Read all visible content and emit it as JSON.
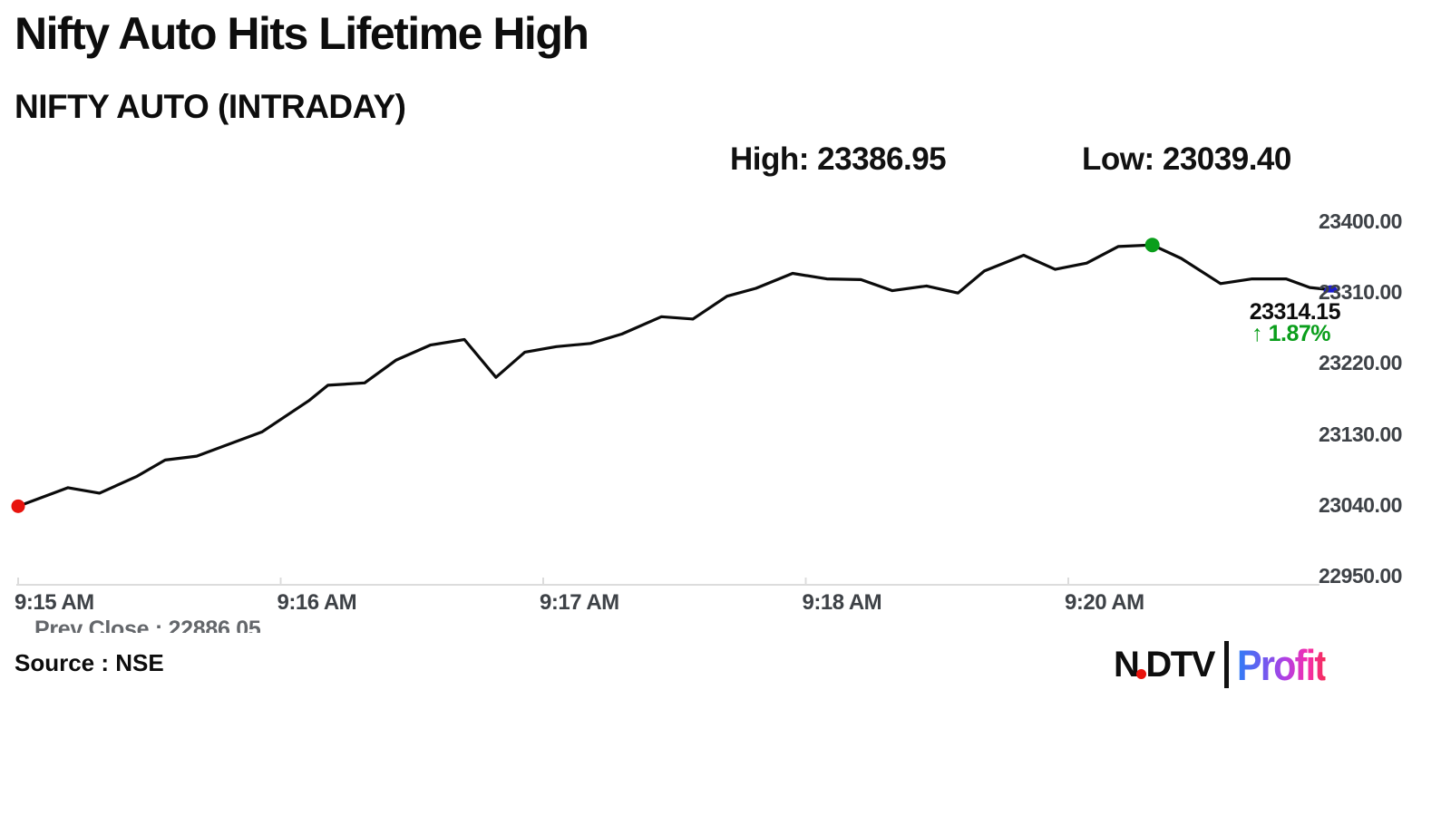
{
  "header": {
    "title": "Nifty Auto Hits Lifetime High",
    "subtitle": "NIFTY AUTO (INTRADAY)"
  },
  "stats": {
    "high_label": "High:",
    "high_value": "23386.95",
    "low_label": "Low:",
    "low_value": "23039.40"
  },
  "chart_data": {
    "type": "line",
    "title": "NIFTY AUTO (INTRADAY)",
    "x_tick_labels": [
      "9:15 AM",
      "9:16 AM",
      "9:17 AM",
      "9:18 AM",
      "9:20 AM"
    ],
    "y_tick_labels": [
      "23400.00",
      "23310.00",
      "23220.00",
      "23130.00",
      "23040.00",
      "22950.00"
    ],
    "ylim": [
      22950,
      23400
    ],
    "grid": false,
    "legend": false,
    "series": [
      {
        "name": "NIFTY AUTO",
        "t_minutes_from_915": [
          0.0,
          0.19,
          0.31,
          0.45,
          0.56,
          0.68,
          0.93,
          1.11,
          1.18,
          1.32,
          1.44,
          1.57,
          1.7,
          1.82,
          1.93,
          2.05,
          2.18,
          2.3,
          2.45,
          2.57,
          2.7,
          2.81,
          2.95,
          3.08,
          3.21,
          3.33,
          3.46,
          3.58,
          3.68,
          3.83,
          3.95,
          4.07,
          4.19,
          4.32,
          4.43,
          4.58,
          4.7,
          4.83,
          4.92,
          5.0
        ],
        "values": [
          23039.4,
          23063,
          23056,
          23077,
          23098,
          23103,
          23134,
          23174,
          23193,
          23196,
          23225,
          23244,
          23251,
          23203,
          23235,
          23242,
          23246,
          23258,
          23280,
          23277,
          23306,
          23316,
          23335,
          23328,
          23327,
          23313,
          23319,
          23310,
          23338,
          23358,
          23340,
          23348,
          23369,
          23371,
          23354,
          23322,
          23328,
          23328,
          23317,
          23314.15
        ]
      }
    ],
    "markers": {
      "start": {
        "index": 0,
        "color": "#e8130d"
      },
      "high": {
        "index": 33,
        "color": "#0a9e1b"
      },
      "last": {
        "index": 39,
        "color": "#1b1bd1"
      }
    },
    "annotations": {
      "last_price": "23314.15",
      "arrow": "↑",
      "change_pct": "1.87%",
      "prev_close": "Prev Close : 22886.05",
      "high": "High: 23386.95",
      "low": "Low: 23039.40"
    },
    "colors": {
      "line": "#0b0b0b",
      "axis": "#dcdcdc",
      "tick_text": "#3e4247",
      "change_green": "#0a9e1b",
      "start_dot": "#e8130d",
      "high_dot": "#0a9e1b",
      "last_dot": "#1b1bd1"
    }
  },
  "footer": {
    "source": "Source : NSE",
    "logo": {
      "ndtv_n": "N",
      "ndtv_rest": "DTV",
      "profit": "Profit"
    }
  }
}
